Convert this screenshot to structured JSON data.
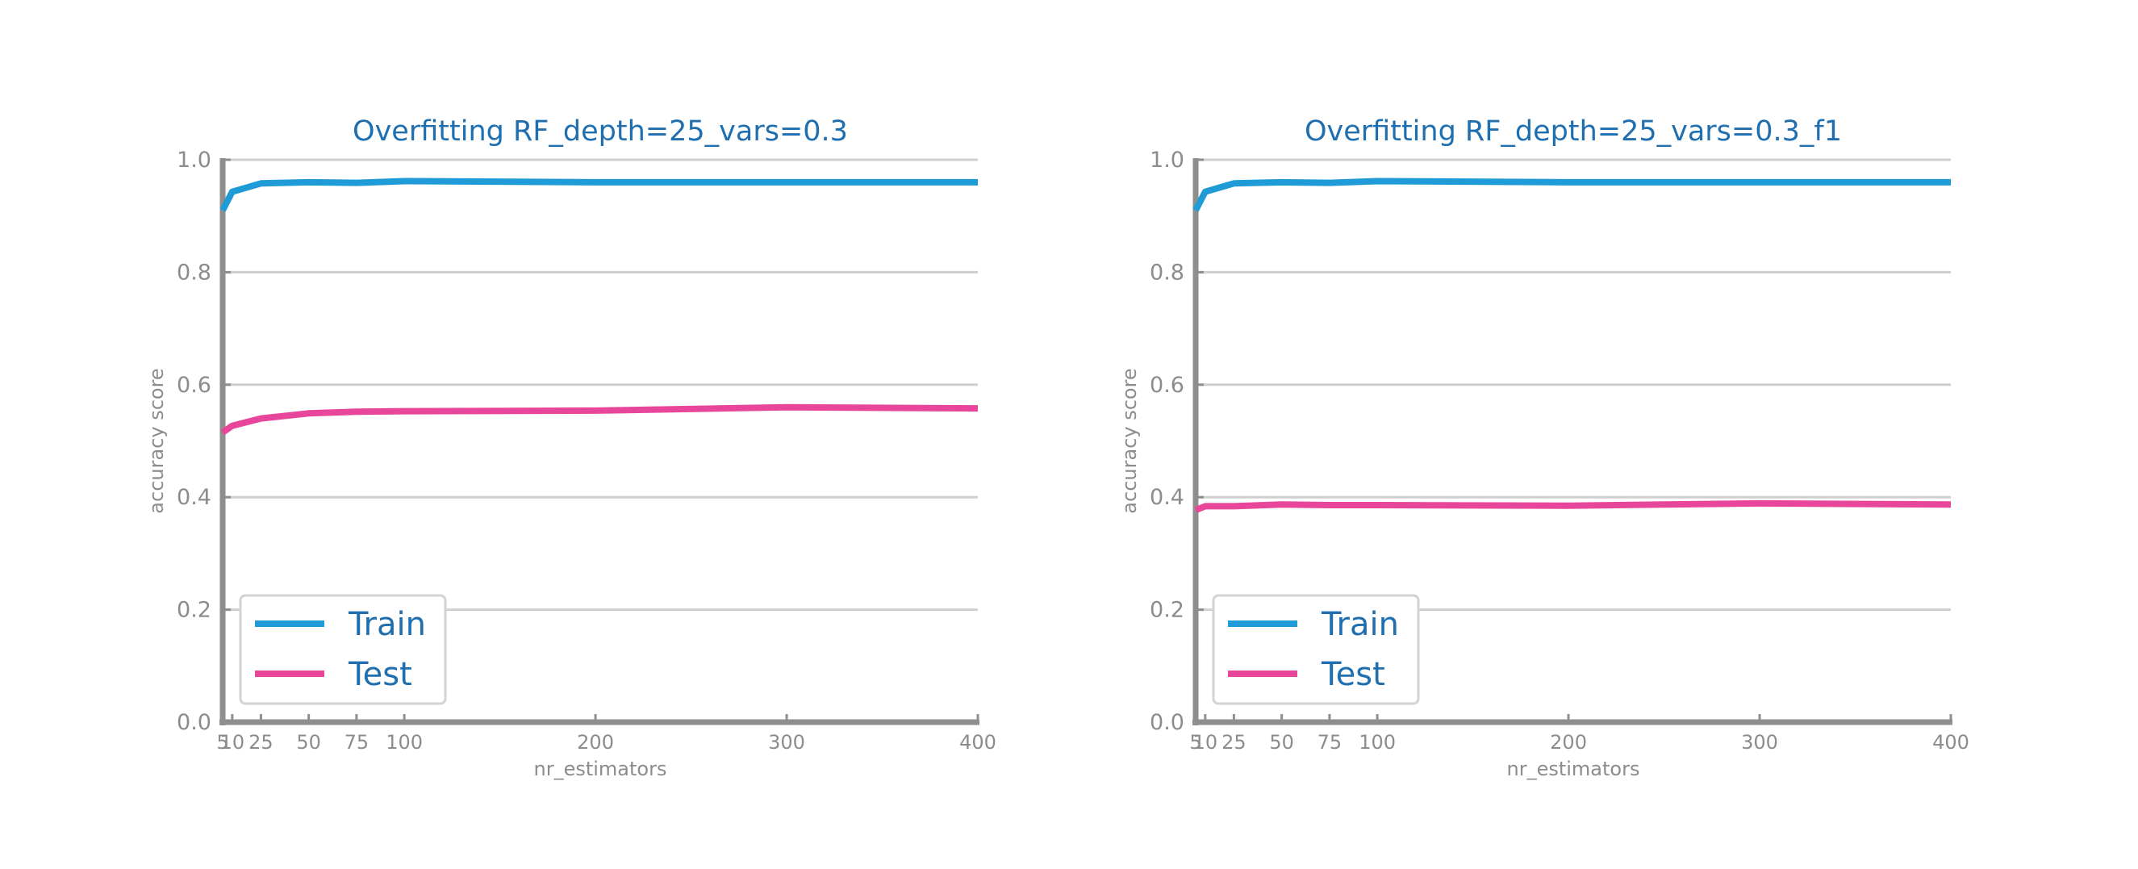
{
  "chart_data": [
    {
      "type": "line",
      "title": "Overfitting RF_depth=25_vars=0.3",
      "xlabel": "nr_estimators",
      "ylabel": "accuracy score",
      "x": [
        5,
        10,
        25,
        50,
        75,
        100,
        200,
        300,
        400
      ],
      "x_ticks": [
        5,
        10,
        25,
        50,
        75,
        100,
        200,
        300,
        400
      ],
      "x_tick_labels": [
        "5",
        "10",
        "25",
        "50",
        "75",
        "100",
        "200",
        "300",
        "400"
      ],
      "y_ticks": [
        0.0,
        0.2,
        0.4,
        0.6,
        0.8,
        1.0
      ],
      "y_tick_labels": [
        "0.0",
        "0.2",
        "0.4",
        "0.6",
        "0.8",
        "1.0"
      ],
      "xlim": [
        5,
        400
      ],
      "ylim": [
        0,
        1
      ],
      "grid": "horizontal",
      "legend": "lower-left",
      "series": [
        {
          "name": "Train",
          "color": "#1f9bd7",
          "values": [
            0.91,
            0.943,
            0.958,
            0.96,
            0.959,
            0.962,
            0.96,
            0.96,
            0.96
          ]
        },
        {
          "name": "Test",
          "color": "#e8469b",
          "values": [
            0.515,
            0.527,
            0.54,
            0.549,
            0.552,
            0.553,
            0.554,
            0.56,
            0.558
          ]
        }
      ]
    },
    {
      "type": "line",
      "title": "Overfitting RF_depth=25_vars=0.3_f1",
      "xlabel": "nr_estimators",
      "ylabel": "accuracy score",
      "x": [
        5,
        10,
        25,
        50,
        75,
        100,
        200,
        300,
        400
      ],
      "x_ticks": [
        5,
        10,
        25,
        50,
        75,
        100,
        200,
        300,
        400
      ],
      "x_tick_labels": [
        "5",
        "10",
        "25",
        "50",
        "75",
        "100",
        "200",
        "300",
        "400"
      ],
      "y_ticks": [
        0.0,
        0.2,
        0.4,
        0.6,
        0.8,
        1.0
      ],
      "y_tick_labels": [
        "0.0",
        "0.2",
        "0.4",
        "0.6",
        "0.8",
        "1.0"
      ],
      "xlim": [
        5,
        400
      ],
      "ylim": [
        0,
        1
      ],
      "grid": "horizontal",
      "legend": "lower-left",
      "series": [
        {
          "name": "Train",
          "color": "#1f9bd7",
          "values": [
            0.91,
            0.943,
            0.958,
            0.96,
            0.959,
            0.962,
            0.96,
            0.96,
            0.96
          ]
        },
        {
          "name": "Test",
          "color": "#e8469b",
          "values": [
            0.377,
            0.384,
            0.384,
            0.387,
            0.386,
            0.386,
            0.385,
            0.389,
            0.387
          ]
        }
      ]
    }
  ]
}
